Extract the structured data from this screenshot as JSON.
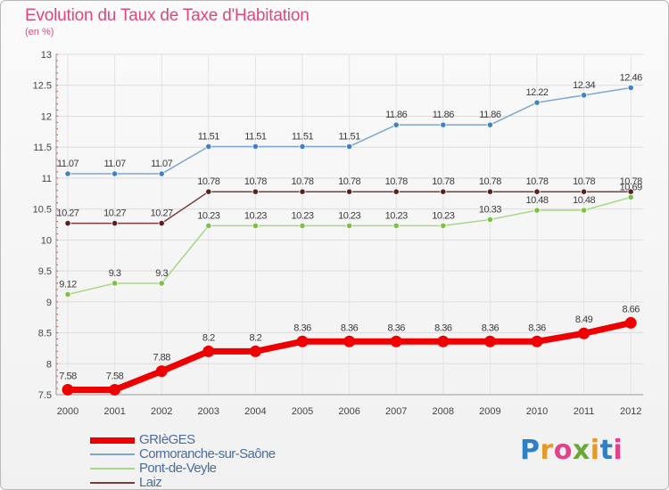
{
  "title": "Evolution du Taux de Taxe d'Habitation",
  "subtitle": "(en %)",
  "logo": {
    "letters": [
      "P",
      "r",
      "o",
      "x",
      "i",
      "t",
      "i"
    ],
    "colors": [
      "#2e7fc4",
      "#e39a2b",
      "#e2428a",
      "#6aa83c",
      "#e39a2b",
      "#2e7fc4",
      "#e2428a"
    ]
  },
  "chart_data": {
    "type": "line",
    "x": [
      "2000",
      "2001",
      "2002",
      "2003",
      "2004",
      "2005",
      "2006",
      "2007",
      "2008",
      "2009",
      "2010",
      "2011",
      "2012"
    ],
    "ylim": [
      7.5,
      13
    ],
    "yticks": [
      "7.5",
      "8",
      "8.5",
      "9",
      "9.5",
      "10",
      "10.5",
      "11",
      "11.5",
      "12",
      "12.5",
      "13"
    ],
    "grid": true,
    "legend_position": "bottom-left",
    "series": [
      {
        "name": "Cormoranche-sur-Saône",
        "color": "#7ea7cf",
        "marker_color": "#3f83c5",
        "values": [
          11.07,
          11.07,
          11.07,
          11.51,
          11.51,
          11.51,
          11.51,
          11.86,
          11.86,
          11.86,
          12.22,
          12.34,
          12.46
        ],
        "labels": [
          "11.07",
          "11.07",
          "11.07",
          "11.51",
          "11.51",
          "11.51",
          "11.51",
          "11.86",
          "11.86",
          "11.86",
          "12.22",
          "12.34",
          "12.46"
        ]
      },
      {
        "name": "Laiz",
        "color": "#7a3b3b",
        "marker_color": "#5a1f1f",
        "values": [
          10.27,
          10.27,
          10.27,
          10.78,
          10.78,
          10.78,
          10.78,
          10.78,
          10.78,
          10.78,
          10.78,
          10.78,
          10.78
        ],
        "labels": [
          "10.27",
          "10.27",
          "10.27",
          "10.78",
          "10.78",
          "10.78",
          "10.78",
          "10.78",
          "10.78",
          "10.78",
          "10.78",
          "10.78",
          "10.78"
        ]
      },
      {
        "name": "Pont-de-Veyle",
        "color": "#a6d883",
        "marker_color": "#7cc142",
        "values": [
          9.12,
          9.3,
          9.3,
          10.23,
          10.23,
          10.23,
          10.23,
          10.23,
          10.23,
          10.33,
          10.48,
          10.48,
          10.69
        ],
        "labels": [
          "9.12",
          "9.3",
          "9.3",
          "10.23",
          "10.23",
          "10.23",
          "10.23",
          "10.23",
          "10.23",
          "10.33",
          "10.48",
          "10.48",
          "10.69"
        ]
      },
      {
        "name": "GRIèGES",
        "color": "#ef0000",
        "marker_color": "#ef0000",
        "values": [
          7.58,
          7.58,
          7.88,
          8.2,
          8.2,
          8.36,
          8.36,
          8.36,
          8.36,
          8.36,
          8.36,
          8.49,
          8.66
        ],
        "labels": [
          "7.58",
          "7.58",
          "7.88",
          "8.2",
          "8.2",
          "8.36",
          "8.36",
          "8.36",
          "8.36",
          "8.36",
          "8.36",
          "8.49",
          "8.66"
        ]
      }
    ],
    "legend": [
      {
        "name": "GRIèGES",
        "color": "#ef0000"
      },
      {
        "name": "Cormoranche-sur-Saône",
        "color": "#7ea7cf"
      },
      {
        "name": "Pont-de-Veyle",
        "color": "#a6d883"
      },
      {
        "name": "Laiz",
        "color": "#7a3b3b"
      }
    ]
  }
}
